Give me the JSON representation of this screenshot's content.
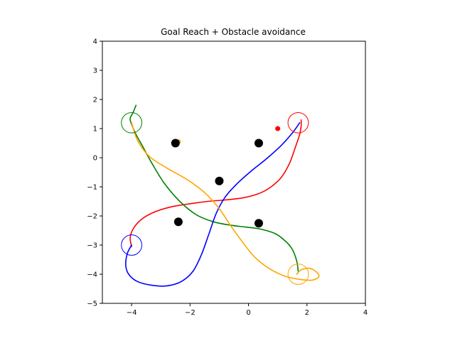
{
  "chart_data": {
    "type": "line",
    "title": "Goal Reach + Obstacle avoidance",
    "xlabel": "",
    "ylabel": "",
    "xlim": [
      -5,
      4
    ],
    "ylim": [
      -5,
      4
    ],
    "xticks": [
      -4,
      -2,
      0,
      2,
      4
    ],
    "yticks": [
      -5,
      -4,
      -3,
      -2,
      -1,
      0,
      1,
      2,
      3,
      4
    ],
    "grid": false,
    "legend": null,
    "obstacles": [
      {
        "x": -2.5,
        "y": 0.5
      },
      {
        "x": 0.35,
        "y": 0.5
      },
      {
        "x": -1.0,
        "y": -0.8
      },
      {
        "x": -2.4,
        "y": -2.2
      },
      {
        "x": 0.35,
        "y": -2.25
      }
    ],
    "goals": [
      {
        "x": 1.7,
        "y": 1.2,
        "color": "#ff0000"
      },
      {
        "x": -4.0,
        "y": 1.2,
        "color": "#008000"
      },
      {
        "x": -4.0,
        "y": -3.0,
        "color": "#0000ff"
      },
      {
        "x": 1.7,
        "y": -4.0,
        "color": "#ffa500"
      }
    ],
    "markers": [
      {
        "x": 1.0,
        "y": 1.0,
        "color": "#ff0000"
      },
      {
        "x": -2.4,
        "y": 0.55,
        "color": "#ffa500"
      }
    ],
    "series": [
      {
        "color": "#ff0000",
        "x": [
          -4.0,
          -4.05,
          -3.95,
          -3.7,
          -3.3,
          -2.7,
          -2.0,
          -1.4,
          -0.8,
          -0.2,
          0.3,
          0.7,
          1.1,
          1.4,
          1.6,
          1.75,
          1.8,
          1.8
        ],
        "y": [
          -3.05,
          -2.75,
          -2.45,
          -2.15,
          -1.9,
          -1.7,
          -1.58,
          -1.5,
          -1.45,
          -1.38,
          -1.25,
          -1.05,
          -0.7,
          -0.2,
          0.35,
          0.8,
          1.1,
          1.3
        ]
      },
      {
        "color": "#008000",
        "x": [
          1.7,
          1.65,
          1.5,
          1.25,
          0.9,
          0.4,
          -0.1,
          -0.6,
          -1.2,
          -1.8,
          -2.4,
          -2.9,
          -3.3,
          -3.6,
          -3.85,
          -4.0,
          -4.05,
          -3.95,
          -3.85
        ],
        "y": [
          -3.9,
          -3.55,
          -3.15,
          -2.85,
          -2.6,
          -2.45,
          -2.38,
          -2.32,
          -2.2,
          -1.95,
          -1.45,
          -0.85,
          -0.2,
          0.35,
          0.8,
          1.15,
          1.35,
          1.55,
          1.8
        ]
      },
      {
        "color": "#0000ff",
        "x": [
          -4.0,
          -4.15,
          -4.2,
          -4.1,
          -3.8,
          -3.3,
          -2.8,
          -2.3,
          -1.9,
          -1.6,
          -1.35,
          -1.1,
          -0.8,
          -0.4,
          0.1,
          0.6,
          1.1,
          1.5,
          1.75
        ],
        "y": [
          -3.0,
          -3.3,
          -3.7,
          -4.0,
          -4.25,
          -4.38,
          -4.4,
          -4.25,
          -3.9,
          -3.3,
          -2.6,
          -1.9,
          -1.35,
          -0.9,
          -0.45,
          -0.05,
          0.4,
          0.85,
          1.2
        ]
      },
      {
        "color": "#ffa500",
        "x": [
          -4.0,
          -3.8,
          -3.4,
          -2.8,
          -2.1,
          -1.5,
          -1.0,
          -0.6,
          -0.2,
          0.2,
          0.7,
          1.2,
          1.6,
          1.95,
          2.2,
          2.4,
          2.35,
          2.1,
          1.8,
          1.65,
          1.7
        ],
        "y": [
          1.2,
          0.6,
          0.05,
          -0.35,
          -0.75,
          -1.2,
          -1.75,
          -2.35,
          -2.9,
          -3.4,
          -3.8,
          -4.05,
          -4.15,
          -4.2,
          -4.2,
          -4.1,
          -3.95,
          -3.8,
          -3.85,
          -4.0,
          -3.95
        ]
      }
    ]
  }
}
